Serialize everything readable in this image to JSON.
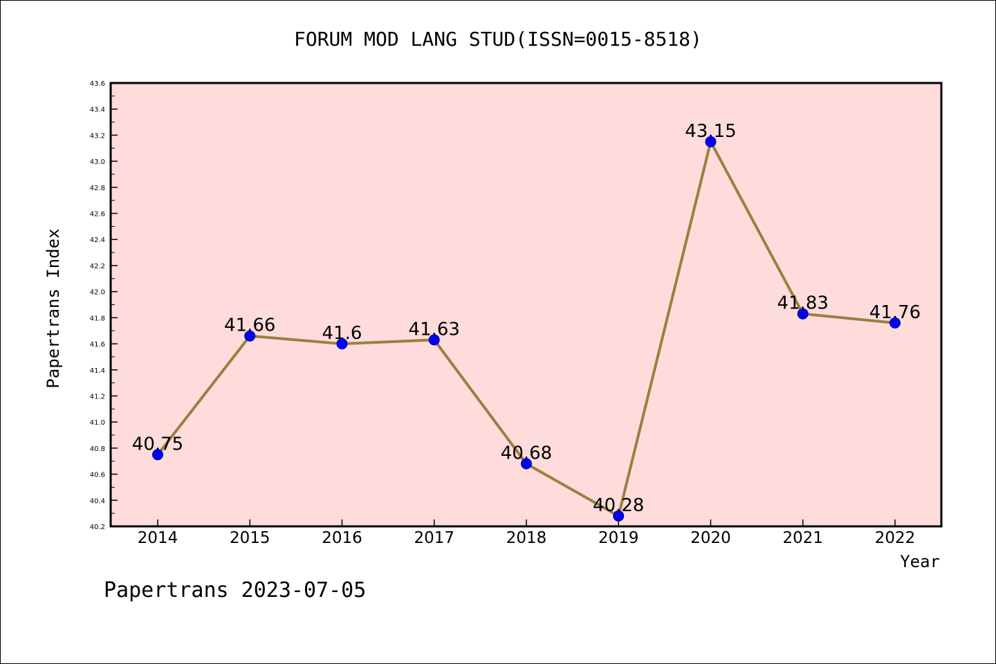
{
  "chart_data": {
    "type": "line",
    "title": "FORUM MOD LANG STUD(ISSN=0015-8518)",
    "xlabel": "Year",
    "ylabel": "Papertrans Index",
    "x": [
      "2014",
      "2015",
      "2016",
      "2017",
      "2018",
      "2019",
      "2020",
      "2021",
      "2022"
    ],
    "series": [
      {
        "values": [
          40.75,
          41.66,
          41.6,
          41.63,
          40.68,
          40.28,
          43.15,
          41.83,
          41.76
        ],
        "value_labels": [
          "40.75",
          "41.66",
          "41.6",
          "41.63",
          "40.68",
          "40.28",
          "43.15",
          "41.83",
          "41.76"
        ]
      }
    ],
    "ylim": [
      40.2,
      43.6
    ],
    "yticks": [
      "40.2",
      "40.4",
      "40.6",
      "40.8",
      "41.0",
      "41.2",
      "41.4",
      "41.6",
      "41.8",
      "42.0",
      "42.2",
      "42.4",
      "42.6",
      "42.8",
      "43.0",
      "43.2",
      "43.4",
      "43.6"
    ],
    "grid": false,
    "legend": "none",
    "colors": {
      "plot_background": "#ffdcdc",
      "line": "#9a8040",
      "marker": "#0000ff",
      "marker_edge": "#000080"
    }
  },
  "footer": {
    "watermark": "Papertrans 2023-07-05"
  }
}
